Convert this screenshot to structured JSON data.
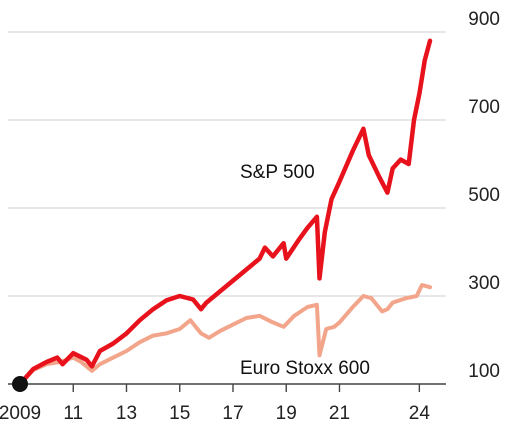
{
  "chart_data": {
    "type": "line",
    "title": "",
    "xlabel": "",
    "ylabel": "",
    "x_ticks": [
      "2009",
      "11",
      "13",
      "15",
      "17",
      "19",
      "21",
      "24"
    ],
    "y_ticks": [
      "100",
      "300",
      "500",
      "700",
      "900"
    ],
    "xlim": [
      2009.0,
      2024.4
    ],
    "ylim": [
      100,
      900
    ],
    "grid": true,
    "series": [
      {
        "name": "S&P 500",
        "color": "#e8121c",
        "x": [
          2009.0,
          2009.5,
          2010.0,
          2010.4,
          2010.6,
          2011.0,
          2011.5,
          2011.7,
          2012.0,
          2012.5,
          2013.0,
          2013.5,
          2014.0,
          2014.5,
          2015.0,
          2015.5,
          2015.8,
          2016.0,
          2016.5,
          2017.0,
          2017.5,
          2018.0,
          2018.2,
          2018.5,
          2018.9,
          2019.0,
          2019.5,
          2019.8,
          2020.15,
          2020.25,
          2020.45,
          2020.7,
          2021.0,
          2021.5,
          2021.9,
          2022.1,
          2022.5,
          2022.8,
          2023.0,
          2023.3,
          2023.6,
          2023.8,
          2024.0,
          2024.2,
          2024.4
        ],
        "values": [
          100,
          134,
          150,
          160,
          145,
          170,
          155,
          140,
          175,
          192,
          215,
          245,
          270,
          290,
          300,
          292,
          270,
          285,
          310,
          335,
          360,
          385,
          410,
          390,
          420,
          385,
          430,
          455,
          480,
          340,
          445,
          520,
          560,
          630,
          680,
          620,
          570,
          535,
          590,
          610,
          600,
          700,
          760,
          835,
          880
        ]
      },
      {
        "name": "Euro Stoxx 600",
        "color": "#f2a58a",
        "x": [
          2009.0,
          2009.5,
          2010.0,
          2010.5,
          2011.0,
          2011.3,
          2011.7,
          2012.0,
          2012.5,
          2013.0,
          2013.5,
          2014.0,
          2014.5,
          2015.0,
          2015.4,
          2015.8,
          2016.1,
          2016.5,
          2017.0,
          2017.5,
          2018.0,
          2018.5,
          2018.9,
          2019.3,
          2019.8,
          2020.15,
          2020.25,
          2020.5,
          2020.8,
          2021.0,
          2021.5,
          2021.9,
          2022.2,
          2022.6,
          2022.8,
          2023.0,
          2023.5,
          2023.9,
          2024.1,
          2024.4
        ],
        "values": [
          100,
          132,
          145,
          150,
          160,
          150,
          130,
          145,
          160,
          175,
          195,
          210,
          215,
          225,
          245,
          215,
          205,
          220,
          235,
          250,
          255,
          240,
          230,
          255,
          275,
          280,
          165,
          225,
          230,
          240,
          275,
          300,
          295,
          265,
          270,
          285,
          295,
          300,
          325,
          320
        ]
      }
    ],
    "start_marker": {
      "x": 2009.0,
      "value": 100,
      "color": "#111111"
    }
  }
}
